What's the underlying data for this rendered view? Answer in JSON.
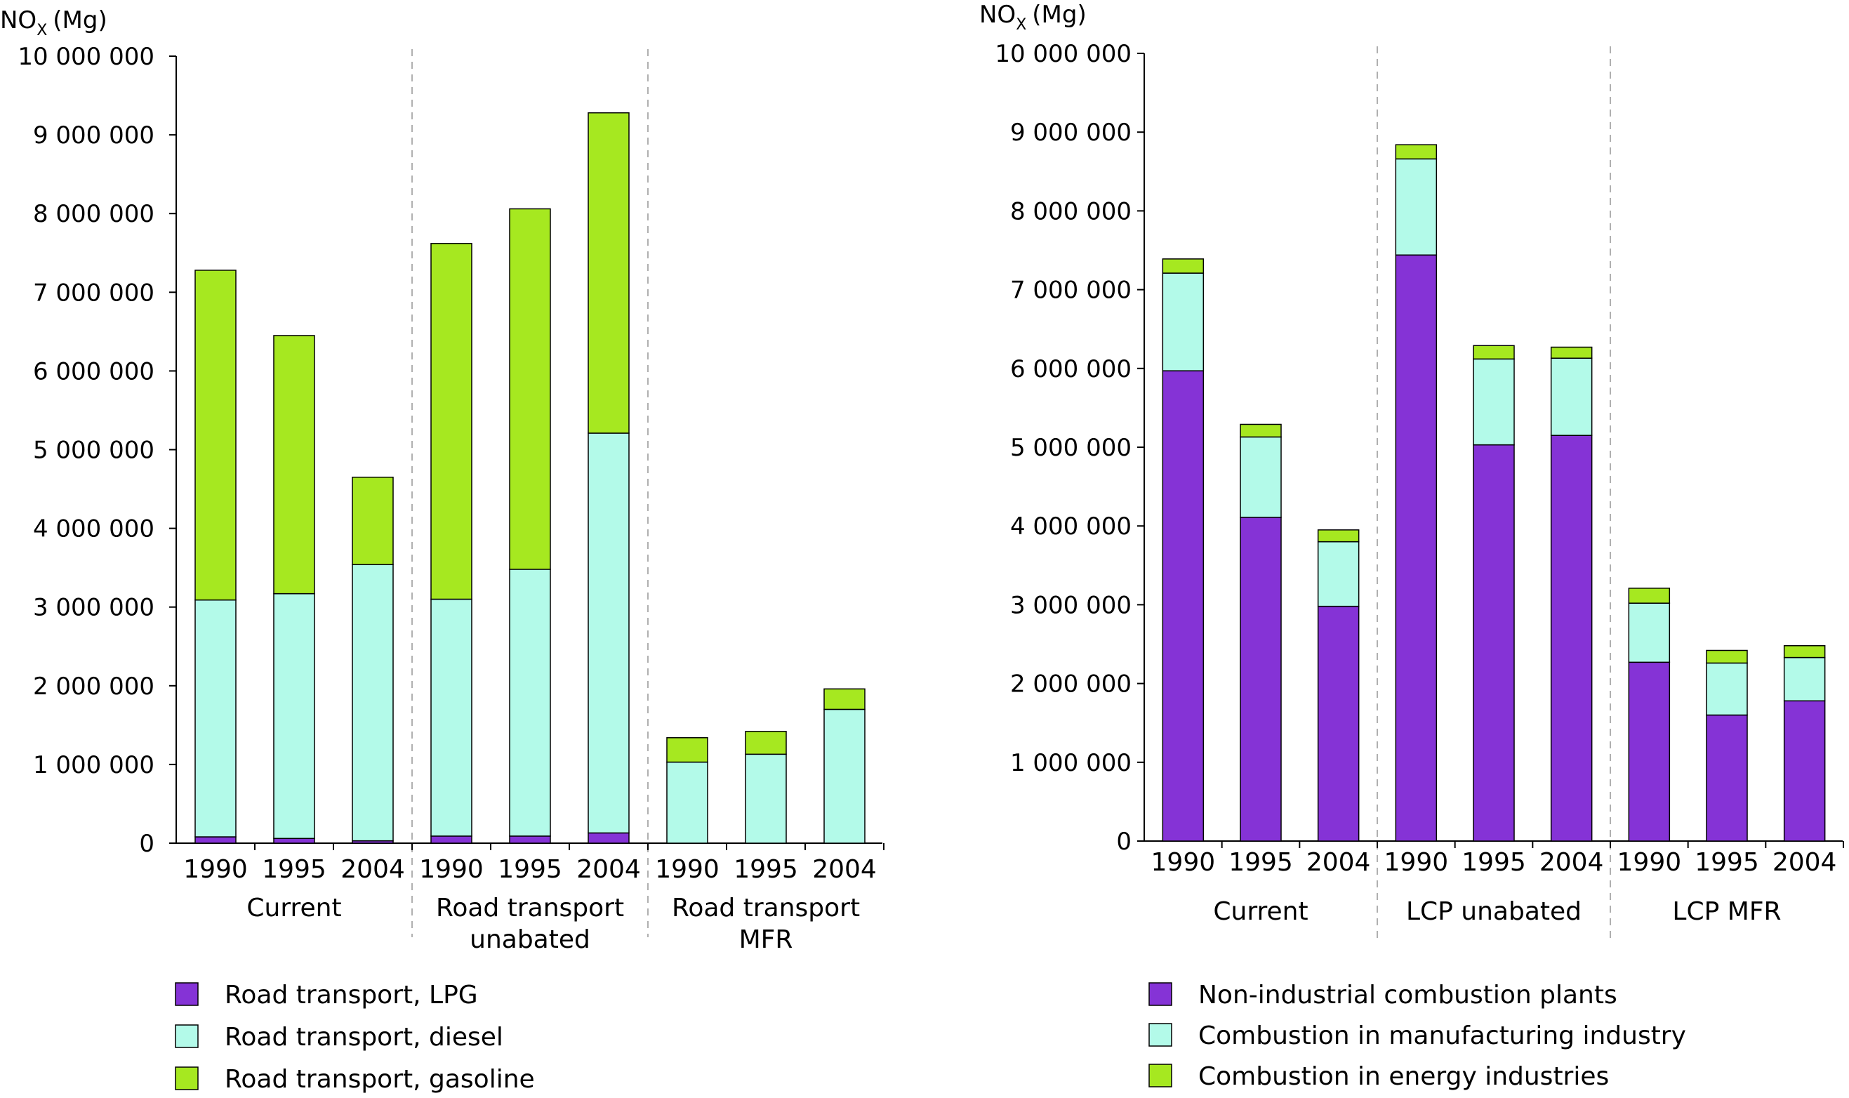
{
  "chart_data": [
    {
      "type": "bar",
      "stacked": true,
      "ylabel_main": "NO",
      "ylabel_sub": "X",
      "ylabel_unit": "(Mg)",
      "ylim": [
        0,
        10000000
      ],
      "yticks": [
        0,
        1000000,
        2000000,
        3000000,
        4000000,
        5000000,
        6000000,
        7000000,
        8000000,
        9000000,
        10000000
      ],
      "ytick_labels": [
        "0",
        "1 000 000",
        "2 000 000",
        "3 000 000",
        "4 000 000",
        "5 000 000",
        "6 000 000",
        "7 000 000",
        "8 000 000",
        "9 000 000",
        "10 000 000"
      ],
      "groups": [
        {
          "label_lines": [
            "Current"
          ],
          "categories": [
            "1990",
            "1995",
            "2004"
          ]
        },
        {
          "label_lines": [
            "Road transport",
            "unabated"
          ],
          "categories": [
            "1990",
            "1995",
            "2004"
          ]
        },
        {
          "label_lines": [
            "Road transport",
            "MFR"
          ],
          "categories": [
            "1990",
            "1995",
            "2004"
          ]
        }
      ],
      "series": [
        {
          "name": "Road transport, LPG",
          "color": "#8533d6",
          "values": [
            80000,
            60000,
            30000,
            90000,
            90000,
            130000,
            0,
            0,
            0
          ]
        },
        {
          "name": "Road transport, diesel",
          "color": "#b3fae9",
          "values": [
            3010000,
            3110000,
            3510000,
            3010000,
            3390000,
            5080000,
            1030000,
            1130000,
            1700000
          ]
        },
        {
          "name": "Road transport, gasoline",
          "color": "#a6e820",
          "values": [
            4190000,
            3280000,
            1110000,
            4520000,
            4580000,
            4070000,
            310000,
            290000,
            260000
          ]
        }
      ],
      "grid": false,
      "legend_position": "bottom"
    },
    {
      "type": "bar",
      "stacked": true,
      "ylabel_main": "NO",
      "ylabel_sub": "X",
      "ylabel_unit": "(Mg)",
      "ylim": [
        0,
        10000000
      ],
      "yticks": [
        0,
        1000000,
        2000000,
        3000000,
        4000000,
        5000000,
        6000000,
        7000000,
        8000000,
        9000000,
        10000000
      ],
      "ytick_labels": [
        "0",
        "1 000 000",
        "2 000 000",
        "3 000 000",
        "4 000 000",
        "5 000 000",
        "6 000 000",
        "7 000 000",
        "8 000 000",
        "9 000 000",
        "10 000 000"
      ],
      "groups": [
        {
          "label_lines": [
            "Current"
          ],
          "categories": [
            "1990",
            "1995",
            "2004"
          ]
        },
        {
          "label_lines": [
            "LCP unabated"
          ],
          "categories": [
            "1990",
            "1995",
            "2004"
          ]
        },
        {
          "label_lines": [
            "LCP MFR"
          ],
          "categories": [
            "1990",
            "1995",
            "2004"
          ]
        }
      ],
      "series": [
        {
          "name": "Non-industrial combustion plants",
          "color": "#8533d6",
          "values": [
            5970000,
            4110000,
            2980000,
            7440000,
            5030000,
            5150000,
            2270000,
            1600000,
            1780000
          ]
        },
        {
          "name": "Combustion in manufacturing industry",
          "color": "#b3fae9",
          "values": [
            1240000,
            1020000,
            820000,
            1220000,
            1090000,
            980000,
            750000,
            660000,
            550000
          ]
        },
        {
          "name": "Combustion in energy industries",
          "color": "#a6e820",
          "values": [
            180000,
            160000,
            150000,
            180000,
            170000,
            140000,
            190000,
            160000,
            150000
          ]
        }
      ],
      "grid": false,
      "legend_position": "bottom"
    }
  ]
}
